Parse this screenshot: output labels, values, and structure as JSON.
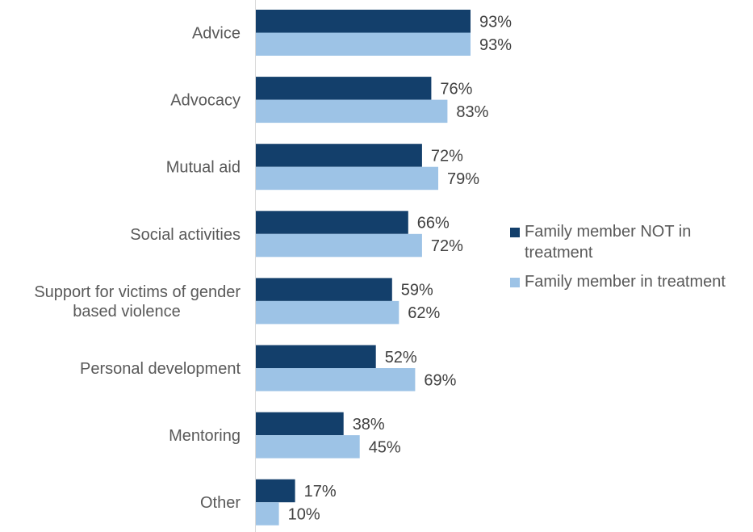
{
  "chart_data": {
    "type": "bar",
    "orientation": "horizontal",
    "categories": [
      "Advice",
      "Advocacy",
      "Mutual aid",
      "Social activities",
      "Support for victims of gender based violence",
      "Personal development",
      "Mentoring",
      "Other"
    ],
    "category_lines": [
      [
        "Advice"
      ],
      [
        "Advocacy"
      ],
      [
        "Mutual aid"
      ],
      [
        "Social activities"
      ],
      [
        "Support for victims of gender",
        "based violence"
      ],
      [
        "Personal development"
      ],
      [
        "Mentoring"
      ],
      [
        "Other"
      ]
    ],
    "series": [
      {
        "name": "Family member NOT in treatment",
        "color": "#133F6B",
        "values": [
          93,
          76,
          72,
          66,
          59,
          52,
          38,
          17
        ]
      },
      {
        "name": "Family member in treatment",
        "color": "#9DC3E6",
        "values": [
          93,
          83,
          79,
          72,
          62,
          69,
          45,
          10
        ]
      }
    ],
    "value_suffix": "%",
    "xlim": [
      0,
      100
    ],
    "grid": false,
    "legend_position": "right",
    "title": "",
    "xlabel": "",
    "ylabel": ""
  }
}
